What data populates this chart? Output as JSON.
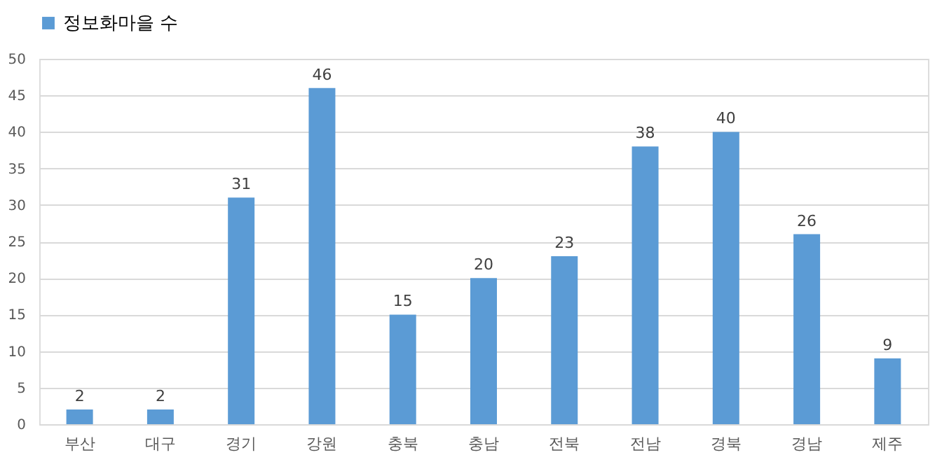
{
  "chart_data": {
    "type": "bar",
    "categories": [
      "부산",
      "대구",
      "경기",
      "강원",
      "충북",
      "충남",
      "전북",
      "전남",
      "경북",
      "경남",
      "제주"
    ],
    "series": [
      {
        "name": "정보화마을 수",
        "color": "#5b9bd5",
        "values": [
          2,
          2,
          31,
          46,
          15,
          20,
          23,
          38,
          40,
          26,
          9
        ]
      }
    ],
    "ylim": [
      0,
      50
    ],
    "yticks": [
      0,
      5,
      10,
      15,
      20,
      25,
      30,
      35,
      40,
      45,
      50
    ],
    "grid": "y",
    "legend": "top left",
    "data_labels": true
  }
}
